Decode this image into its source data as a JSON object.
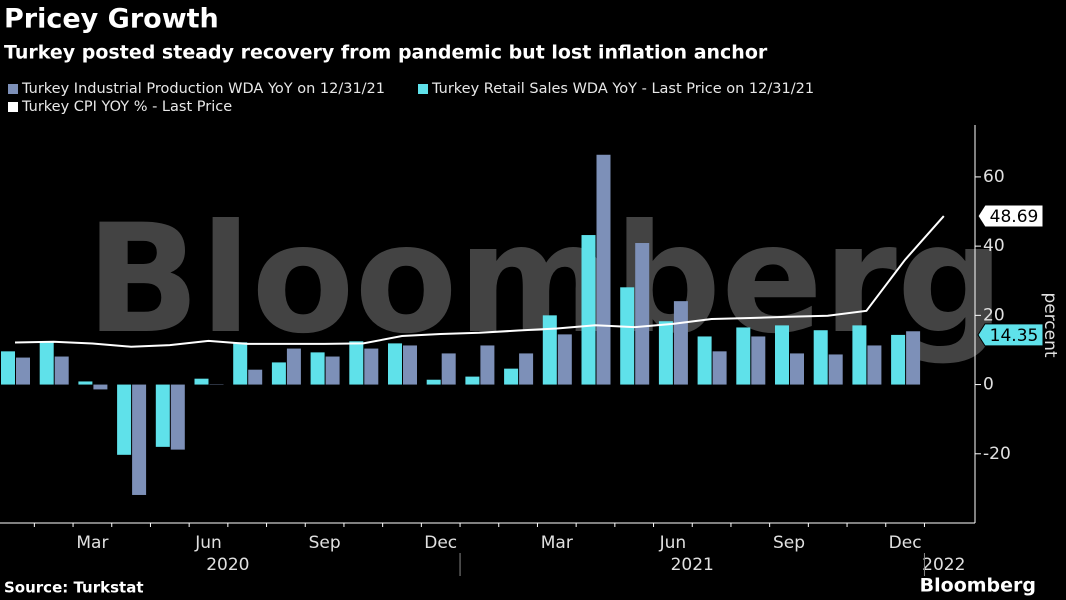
{
  "chart_data": {
    "type": "bar",
    "title": "Pricey Growth",
    "subtitle": "Turkey posted steady recovery from pandemic but lost inflation anchor",
    "y_label": "percent",
    "source": "Source: Turkstat",
    "watermark": "Bloomberg",
    "brand": "Bloomberg",
    "categories": [
      null,
      null,
      "Mar",
      null,
      null,
      "Jun",
      null,
      null,
      "Sep",
      null,
      null,
      "Dec",
      null,
      null,
      "Mar",
      null,
      null,
      "Jun",
      null,
      null,
      "Sep",
      null,
      null,
      "Dec",
      null
    ],
    "year_labels": [
      "2020",
      "2021",
      "2022"
    ],
    "series": [
      {
        "name": "Turkey Industrial Production WDA YoY on 12/31/21",
        "color": "#7d90b8",
        "type": "bar",
        "values": [
          7.8,
          8.1,
          -1.4,
          -31.9,
          -18.8,
          0.1,
          4.3,
          10.4,
          8.1,
          10.4,
          11.3,
          9.0,
          11.3,
          9.0,
          14.5,
          66.4,
          40.9,
          24.1,
          9.6,
          13.9,
          9.0,
          8.7,
          11.3,
          15.4,
          null
        ]
      },
      {
        "name": "Turkey Retail Sales WDA YoY - Last Price on 12/31/21",
        "color": "#5fe1ea",
        "type": "bar",
        "values": [
          9.6,
          12.2,
          0.9,
          -20.3,
          -18.0,
          1.7,
          12.2,
          6.4,
          9.3,
          12.5,
          11.9,
          1.4,
          2.3,
          4.6,
          20.0,
          43.2,
          28.1,
          18.3,
          13.9,
          16.5,
          17.1,
          15.7,
          17.1,
          14.35,
          null
        ]
      },
      {
        "name": "Turkey CPI YOY % - Last Price",
        "color": "#ffffff",
        "type": "line",
        "values": [
          12.15,
          12.37,
          11.86,
          10.94,
          11.39,
          12.62,
          11.76,
          11.77,
          11.75,
          11.89,
          14.03,
          14.6,
          14.97,
          15.61,
          16.19,
          17.14,
          16.59,
          17.53,
          18.95,
          19.25,
          19.58,
          19.89,
          21.31,
          36.08,
          48.69
        ]
      }
    ],
    "ylim": [
      -40,
      75
    ],
    "yticks": [
      -20,
      0,
      20,
      40,
      60
    ],
    "grid": false
  }
}
